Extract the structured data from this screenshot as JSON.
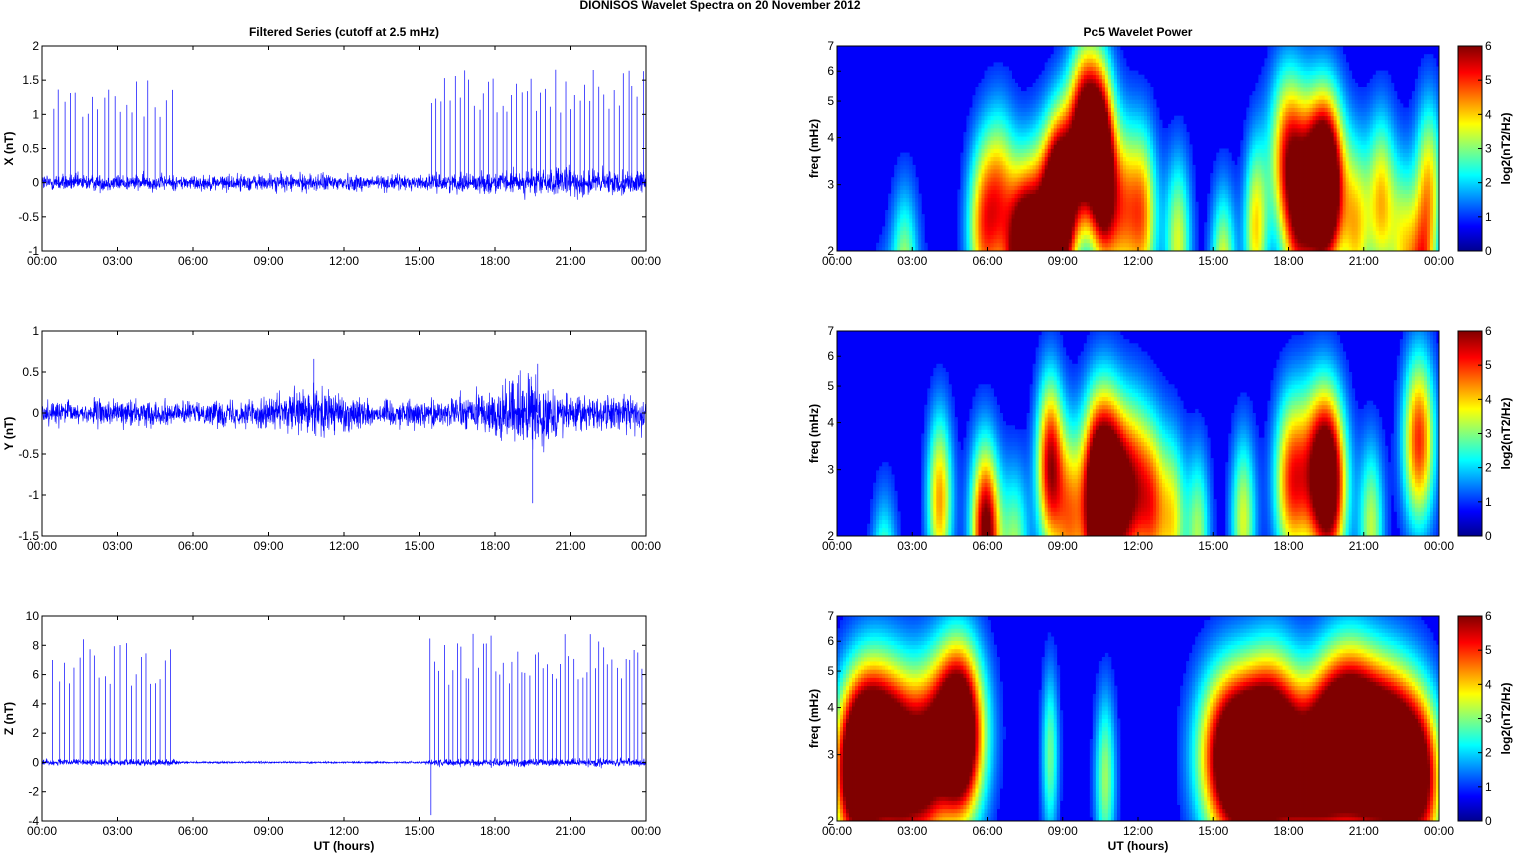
{
  "figure": {
    "title": "DIONISOS Wavelet Spectra on 20 November  2012"
  },
  "chart_data": [
    {
      "type": "line",
      "title": "Filtered Series (cutoff at 2.5 mHz)",
      "ylabel": "X (nT)",
      "xlabel": "",
      "xlim": [
        0,
        24
      ],
      "ylim": [
        -1,
        2
      ],
      "x_ticks": [
        "00:00",
        "03:00",
        "06:00",
        "09:00",
        "12:00",
        "15:00",
        "18:00",
        "21:00",
        "00:00"
      ],
      "y_ticks": [
        "-1",
        "-0.5",
        "0",
        "0.5",
        "1",
        "1.5",
        "2"
      ],
      "line_color": "#0000ff",
      "series": [
        {
          "name": "",
          "noise_amplitude": [
            [
              0,
              0.12
            ],
            [
              6,
              0.1
            ],
            [
              9,
              0.12
            ],
            [
              12,
              0.12
            ],
            [
              15,
              0.1
            ],
            [
              18,
              0.14
            ],
            [
              21,
              0.2
            ],
            [
              24,
              0.14
            ]
          ]
        }
      ],
      "spikes": [
        {
          "start": 0.4,
          "end": 5.3,
          "peak": 1.55,
          "count": 22
        },
        {
          "start": 15.4,
          "end": 24.0,
          "peak": 1.7,
          "count": 45
        }
      ]
    },
    {
      "type": "line",
      "title": "",
      "ylabel": "Y (nT)",
      "xlabel": "",
      "xlim": [
        0,
        24
      ],
      "ylim": [
        -1.5,
        1
      ],
      "x_ticks": [
        "00:00",
        "03:00",
        "06:00",
        "09:00",
        "12:00",
        "15:00",
        "18:00",
        "21:00",
        "00:00"
      ],
      "y_ticks": [
        "-1.5",
        "-1",
        "-0.5",
        "0",
        "0.5",
        "1"
      ],
      "line_color": "#0000ff",
      "series": [
        {
          "name": "",
          "noise_amplitude": [
            [
              0,
              0.12
            ],
            [
              3,
              0.15
            ],
            [
              6,
              0.12
            ],
            [
              9,
              0.18
            ],
            [
              11,
              0.3
            ],
            [
              13,
              0.15
            ],
            [
              16,
              0.15
            ],
            [
              19.5,
              0.4
            ],
            [
              21,
              0.2
            ],
            [
              24,
              0.2
            ]
          ]
        }
      ],
      "spikes": [
        {
          "start": 10.8,
          "end": 10.9,
          "peak": 0.66,
          "count": 1
        },
        {
          "start": 19.5,
          "end": 19.6,
          "peak": -1.1,
          "count": 1
        },
        {
          "start": 19.7,
          "end": 19.8,
          "peak": 0.6,
          "count": 1
        }
      ]
    },
    {
      "type": "line",
      "title": "",
      "ylabel": "Z (nT)",
      "xlabel": "UT (hours)",
      "xlim": [
        0,
        24
      ],
      "ylim": [
        -4,
        10
      ],
      "x_ticks": [
        "00:00",
        "03:00",
        "06:00",
        "09:00",
        "12:00",
        "15:00",
        "18:00",
        "21:00",
        "00:00"
      ],
      "y_ticks": [
        "-4",
        "-2",
        "0",
        "2",
        "4",
        "6",
        "8",
        "10"
      ],
      "line_color": "#0000ff",
      "series": [
        {
          "name": "",
          "noise_amplitude": [
            [
              0,
              0.2
            ],
            [
              5.3,
              0.2
            ],
            [
              5.5,
              0.06
            ],
            [
              15.2,
              0.06
            ],
            [
              15.4,
              0.25
            ],
            [
              24,
              0.25
            ]
          ]
        }
      ],
      "spikes": [
        {
          "start": 0.4,
          "end": 5.3,
          "peak": 8.5,
          "count": 24
        },
        {
          "start": 15.4,
          "end": 24.0,
          "peak": 8.8,
          "count": 50
        },
        {
          "start": 15.45,
          "end": 15.5,
          "peak": -3.6,
          "count": 1
        }
      ]
    },
    {
      "type": "heatmap",
      "title": "Pc5 Wavelet Power",
      "ylabel": "freq (mHz)",
      "xlabel": "",
      "xlim": [
        0,
        24
      ],
      "ylim": [
        2,
        7
      ],
      "y_scale": "log",
      "x_ticks": [
        "00:00",
        "03:00",
        "06:00",
        "09:00",
        "12:00",
        "15:00",
        "18:00",
        "21:00",
        "00:00"
      ],
      "y_ticks": [
        "2",
        "3",
        "4",
        "5",
        "6",
        "7"
      ],
      "colorbar": {
        "label": "log2(nT2/Hz)",
        "ticks": [
          "0",
          "1",
          "2",
          "3",
          "4",
          "5",
          "6"
        ],
        "range": [
          0,
          6
        ],
        "colormap": "jet"
      },
      "blobs": [
        [
          1.8,
          2.4,
          0.9,
          4.3
        ],
        [
          2.7,
          2.4,
          1.7,
          3.0
        ],
        [
          4.0,
          2.3,
          1.5,
          0.4
        ],
        [
          5.8,
          2.8,
          2.3,
          3.8
        ],
        [
          6.5,
          2.9,
          2.8,
          3.5
        ],
        [
          7.3,
          2.6,
          1.6,
          3.2
        ],
        [
          7.6,
          3.2,
          2.0,
          6.0
        ],
        [
          8.4,
          3.1,
          2.5,
          3.5
        ],
        [
          8.8,
          2.4,
          2.5,
          5.5
        ],
        [
          9.2,
          2.6,
          2.9,
          3.5
        ],
        [
          9.8,
          2.6,
          4.0,
          4.8
        ],
        [
          10.3,
          2.9,
          4.1,
          4.5
        ],
        [
          10.6,
          2.1,
          3.1,
          4.4
        ],
        [
          11.3,
          3.1,
          2.6,
          4.0
        ],
        [
          12.2,
          2.6,
          2.5,
          3.8
        ],
        [
          13.6,
          2.3,
          2.1,
          3.2
        ],
        [
          15.4,
          2.2,
          1.7,
          3.5
        ],
        [
          16.7,
          2.1,
          2.3,
          3.6
        ],
        [
          18.0,
          3.3,
          3.6,
          4.8
        ],
        [
          18.4,
          2.7,
          2.3,
          3.5
        ],
        [
          19.2,
          3.0,
          3.0,
          6.5
        ],
        [
          19.7,
          2.9,
          3.0,
          4.8
        ],
        [
          20.7,
          2.4,
          2.3,
          3.4
        ],
        [
          21.7,
          2.6,
          2.7,
          3.8
        ],
        [
          22.6,
          2.3,
          2.0,
          3.0
        ],
        [
          23.3,
          2.2,
          1.5,
          4.4
        ],
        [
          23.6,
          2.4,
          3.0,
          3.5
        ]
      ]
    },
    {
      "type": "heatmap",
      "title": "",
      "ylabel": "freq (mHz)",
      "xlabel": "",
      "xlim": [
        0,
        24
      ],
      "ylim": [
        2,
        7
      ],
      "y_scale": "log",
      "x_ticks": [
        "00:00",
        "03:00",
        "06:00",
        "09:00",
        "12:00",
        "15:00",
        "18:00",
        "21:00",
        "00:00"
      ],
      "y_ticks": [
        "2",
        "3",
        "4",
        "5",
        "6",
        "7"
      ],
      "colorbar": {
        "label": "log2(nT2/Hz)",
        "ticks": [
          "0",
          "1",
          "2",
          "3",
          "4",
          "5",
          "6"
        ],
        "range": [
          0,
          6
        ],
        "colormap": "jet"
      },
      "blobs": [
        [
          1.8,
          2.2,
          0.9,
          3.3
        ],
        [
          1.9,
          2.2,
          1.5,
          2.4
        ],
        [
          4.1,
          2.2,
          2.5,
          4.1
        ],
        [
          5.8,
          2.6,
          2.3,
          2.2
        ],
        [
          6.0,
          2.4,
          1.9,
          4.7
        ],
        [
          7.1,
          2.4,
          1.8,
          2.8
        ],
        [
          8.5,
          2.4,
          3.1,
          5.5
        ],
        [
          9.3,
          2.6,
          2.2,
          3.8
        ],
        [
          10.3,
          2.3,
          2.1,
          4.1
        ],
        [
          10.6,
          3.4,
          3.0,
          6.0
        ],
        [
          11.2,
          2.6,
          2.4,
          4.2
        ],
        [
          11.9,
          2.6,
          2.7,
          4.0
        ],
        [
          12.6,
          2.4,
          2.4,
          3.8
        ],
        [
          13.4,
          2.3,
          2.2,
          3.2
        ],
        [
          14.4,
          2.1,
          2.0,
          2.8
        ],
        [
          16.2,
          2.2,
          2.2,
          3.2
        ],
        [
          18.1,
          3.0,
          2.8,
          4.5
        ],
        [
          19.3,
          3.6,
          3.0,
          5.5
        ],
        [
          19.7,
          2.9,
          2.6,
          3.6
        ],
        [
          21.3,
          2.2,
          2.1,
          3.0
        ],
        [
          23.2,
          2.8,
          3.6,
          4.9
        ]
      ]
    },
    {
      "type": "heatmap",
      "title": "",
      "ylabel": "freq (mHz)",
      "xlabel": "UT (hours)",
      "xlim": [
        0,
        24
      ],
      "ylim": [
        2,
        7
      ],
      "y_scale": "log",
      "x_ticks": [
        "00:00",
        "03:00",
        "06:00",
        "09:00",
        "12:00",
        "15:00",
        "18:00",
        "21:00",
        "00:00"
      ],
      "y_ticks": [
        "2",
        "3",
        "4",
        "5",
        "6",
        "7"
      ],
      "colorbar": {
        "label": "log2(nT2/Hz)",
        "ticks": [
          "0",
          "1",
          "2",
          "3",
          "4",
          "5",
          "6"
        ],
        "range": [
          0,
          6
        ],
        "colormap": "jet"
      },
      "blobs": [
        [
          0.5,
          3.5,
          2.6,
          4.0
        ],
        [
          1.2,
          4.0,
          2.9,
          4.6
        ],
        [
          1.8,
          5.4,
          3.2,
          5.5
        ],
        [
          2.6,
          3.5,
          2.6,
          3.8
        ],
        [
          3.5,
          3.2,
          2.6,
          3.5
        ],
        [
          4.5,
          5.5,
          3.4,
          4.6
        ],
        [
          4.9,
          4.0,
          3.4,
          5.5
        ],
        [
          8.5,
          1.5,
          3.0,
          2.5
        ],
        [
          10.7,
          1.8,
          2.6,
          2.8
        ],
        [
          15.6,
          5.5,
          3.0,
          5.8
        ],
        [
          16.6,
          5.6,
          2.7,
          5.5
        ],
        [
          17.4,
          4.8,
          3.4,
          4.8
        ],
        [
          18.5,
          4.5,
          2.6,
          4.6
        ],
        [
          19.5,
          4.0,
          3.0,
          4.8
        ],
        [
          20.4,
          4.6,
          3.5,
          4.9
        ],
        [
          21.1,
          5.5,
          3.0,
          5.6
        ],
        [
          22.0,
          4.5,
          3.0,
          4.6
        ],
        [
          22.8,
          4.0,
          2.8,
          4.1
        ],
        [
          23.5,
          3.5,
          2.5,
          3.7
        ]
      ]
    }
  ]
}
